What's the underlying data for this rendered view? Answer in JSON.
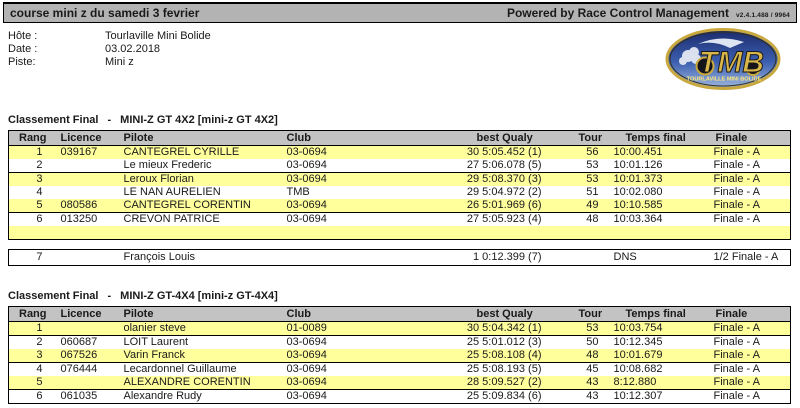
{
  "titlebar": {
    "left_title": "course mini z du samedi 3 fevrier",
    "right_title": "Powered by Race Control Management",
    "version": "v2.4.1.488 / 9964"
  },
  "info": {
    "rows": [
      {
        "label": "Hôte :",
        "value": "Tourlaville Mini Bolide"
      },
      {
        "label": "Date :",
        "value": "03.02.2018"
      },
      {
        "label": "Piste:",
        "value": "Mini z"
      }
    ]
  },
  "logo": {
    "text": "TMB",
    "subtext": "TOURLAVILLE MINI BOLIDE",
    "colors": {
      "gold": "#c9a83e",
      "blue_dark": "#1b2a6b",
      "blue_light": "#9db8e0"
    }
  },
  "colors": {
    "highlight_row": "#ffff9c",
    "table_header_bg": "#c3c3c3",
    "titlebar_bg": "#b3b3b3"
  },
  "columns": [
    "Rang",
    "Licence",
    "Pilote",
    "Club",
    "best Qualy",
    "Tour",
    "Temps final",
    "Finale"
  ],
  "tables": [
    {
      "title_prefix": "Classement Final",
      "title_sep": "-",
      "title_name": "MINI-Z GT 4X2 [mini-z GT 4X2]",
      "rows": [
        {
          "rang": "1",
          "licence": "039167",
          "pilote": "CANTEGREL CYRILLE",
          "club": "03-0694",
          "best_qualy": "30 5:05.452 (1)",
          "tour": "56",
          "temps_final": "10:00.451",
          "finale": "Finale - A",
          "h": true,
          "s": false
        },
        {
          "rang": "2",
          "licence": "",
          "pilote": "Le mieux Frederic",
          "club": "03-0694",
          "best_qualy": "27 5:06.078 (5)",
          "tour": "53",
          "temps_final": "10:01.126",
          "finale": "Finale - A",
          "h": false,
          "s": true
        },
        {
          "rang": "3",
          "licence": "",
          "pilote": "Leroux Florian",
          "club": "03-0694",
          "best_qualy": "29 5:08.370 (3)",
          "tour": "53",
          "temps_final": "10:01.373",
          "finale": "Finale - A",
          "h": true,
          "s": false
        },
        {
          "rang": "4",
          "licence": "",
          "pilote": "LE NAN AURELIEN",
          "club": "TMB",
          "best_qualy": "29 5:04.972 (2)",
          "tour": "51",
          "temps_final": "10:02.080",
          "finale": "Finale - A",
          "h": false,
          "s": false
        },
        {
          "rang": "5",
          "licence": "080586",
          "pilote": "CANTEGREL CORENTIN",
          "club": "03-0694",
          "best_qualy": "26 5:01.969 (6)",
          "tour": "49",
          "temps_final": "10:10.585",
          "finale": "Finale - A",
          "h": true,
          "s": true
        },
        {
          "rang": "6",
          "licence": "013250",
          "pilote": "CREVON PATRICE",
          "club": "03-0694",
          "best_qualy": "27 5:05.923 (4)",
          "tour": "48",
          "temps_final": "10:03.364",
          "finale": "Finale - A",
          "h": false,
          "s": false
        },
        {
          "rang": "",
          "licence": "",
          "pilote": "",
          "club": "",
          "best_qualy": "",
          "tour": "",
          "temps_final": "",
          "finale": "",
          "h": true,
          "s": false
        }
      ],
      "extra_rows": [
        {
          "rang": "7",
          "licence": "",
          "pilote": "François Louis",
          "club": "",
          "best_qualy": "1 0:12.399 (7)",
          "tour": "",
          "temps_final": "DNS",
          "finale": "1/2 Finale - A",
          "h": false,
          "s": false
        }
      ]
    },
    {
      "title_prefix": "Classement Final",
      "title_sep": "-",
      "title_name": "MINI-Z GT-4X4 [mini-z GT-4X4]",
      "rows": [
        {
          "rang": "1",
          "licence": "",
          "pilote": "olanier steve",
          "club": "01-0089",
          "best_qualy": "30 5:04.342 (1)",
          "tour": "53",
          "temps_final": "10:03.754",
          "finale": "Finale - A",
          "h": true,
          "s": true
        },
        {
          "rang": "2",
          "licence": "060687",
          "pilote": "LOIT Laurent",
          "club": "03-0694",
          "best_qualy": "25 5:01.012 (3)",
          "tour": "50",
          "temps_final": "10:12.345",
          "finale": "Finale - A",
          "h": false,
          "s": false
        },
        {
          "rang": "3",
          "licence": "067526",
          "pilote": "Varin Franck",
          "club": "03-0694",
          "best_qualy": "25 5:08.108 (4)",
          "tour": "48",
          "temps_final": "10:01.679",
          "finale": "Finale - A",
          "h": true,
          "s": true
        },
        {
          "rang": "4",
          "licence": "076444",
          "pilote": "Lecardonnel Guillaume",
          "club": "03-0694",
          "best_qualy": "25 5:08.193 (5)",
          "tour": "45",
          "temps_final": "10:08.682",
          "finale": "Finale - A",
          "h": false,
          "s": false
        },
        {
          "rang": "5",
          "licence": "",
          "pilote": "ALEXANDRE CORENTIN",
          "club": "03-0694",
          "best_qualy": "28 5:09.527 (2)",
          "tour": "43",
          "temps_final": "8:12.880",
          "finale": "Finale - A",
          "h": true,
          "s": true
        },
        {
          "rang": "6",
          "licence": "061035",
          "pilote": "Alexandre Rudy",
          "club": "03-0694",
          "best_qualy": "25 5:09.834 (6)",
          "tour": "43",
          "temps_final": "10:12.307",
          "finale": "Finale - A",
          "h": false,
          "s": false
        }
      ],
      "extra_rows": []
    }
  ]
}
